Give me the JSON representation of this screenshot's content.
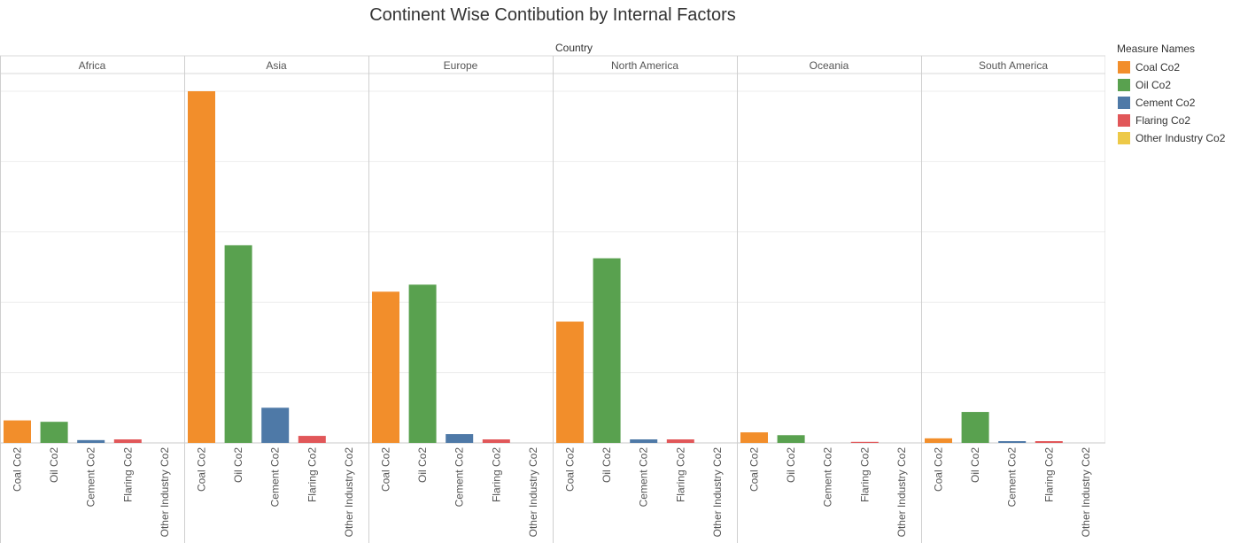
{
  "chart_data": {
    "type": "bar",
    "title": "Continent Wise Contibution by Internal Factors",
    "column_header": "Country",
    "panels": [
      "Africa",
      "Asia",
      "Europe",
      "North America",
      "Oceania",
      "South America"
    ],
    "categories": [
      "Coal Co2",
      "Oil Co2",
      "Cement Co2",
      "Flaring Co2",
      "Other Industry Co2"
    ],
    "series": [
      {
        "panel": "Africa",
        "values": [
          6.4,
          6.0,
          0.8,
          1.0,
          0.0
        ]
      },
      {
        "panel": "Asia",
        "values": [
          100.0,
          56.2,
          10.0,
          2.0,
          0.0
        ]
      },
      {
        "panel": "Europe",
        "values": [
          43.0,
          45.0,
          2.5,
          1.0,
          0.0
        ]
      },
      {
        "panel": "North America",
        "values": [
          34.5,
          52.5,
          1.0,
          1.0,
          0.0
        ]
      },
      {
        "panel": "Oceania",
        "values": [
          3.0,
          2.2,
          0.0,
          0.3,
          0.0
        ]
      },
      {
        "panel": "South America",
        "values": [
          1.3,
          8.8,
          0.5,
          0.5,
          0.0
        ]
      }
    ],
    "ylim": [
      0,
      100
    ],
    "y_gridlines": [
      20,
      40,
      60,
      80,
      100
    ],
    "grid": true,
    "legend_position": "right",
    "colors": {
      "Coal Co2": "#f28e2b",
      "Oil Co2": "#59a14f",
      "Cement Co2": "#4e79a7",
      "Flaring Co2": "#e15759",
      "Other Industry Co2": "#edc948"
    }
  },
  "legend": {
    "title": "Measure Names",
    "items": [
      "Coal Co2",
      "Oil Co2",
      "Cement Co2",
      "Flaring Co2",
      "Other Industry Co2"
    ]
  }
}
